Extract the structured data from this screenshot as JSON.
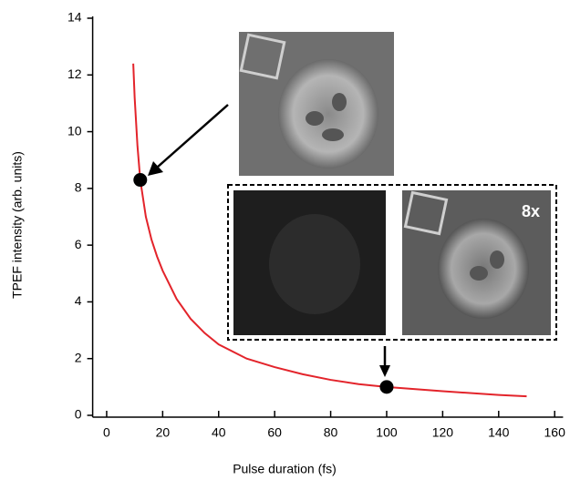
{
  "chart_data": {
    "type": "line",
    "x_label": "Pulse duration (fs)",
    "y_label": "TPEF intensity (arb. units)",
    "annotation": "8x",
    "xlim": [
      -5,
      163
    ],
    "ylim": [
      0,
      14
    ],
    "xticks": [
      0,
      20,
      40,
      60,
      80,
      100,
      120,
      140,
      160
    ],
    "yticks": [
      0,
      2,
      4,
      6,
      8,
      10,
      12,
      14
    ],
    "series": [
      {
        "color": "#e3242b",
        "style": "line",
        "x": [
          9.5,
          10,
          11,
          12,
          14,
          16,
          18,
          20,
          25,
          30,
          35,
          40,
          50,
          60,
          70,
          80,
          90,
          100,
          120,
          140,
          150
        ],
        "values": [
          12.4,
          11.2,
          9.5,
          8.3,
          7.0,
          6.2,
          5.6,
          5.1,
          4.1,
          3.4,
          2.9,
          2.5,
          2.0,
          1.7,
          1.45,
          1.25,
          1.1,
          1.0,
          0.85,
          0.72,
          0.67
        ]
      },
      {
        "color": "#000000",
        "style": "marker",
        "x": [
          12,
          100
        ],
        "values": [
          8.3,
          1.0
        ]
      }
    ]
  }
}
